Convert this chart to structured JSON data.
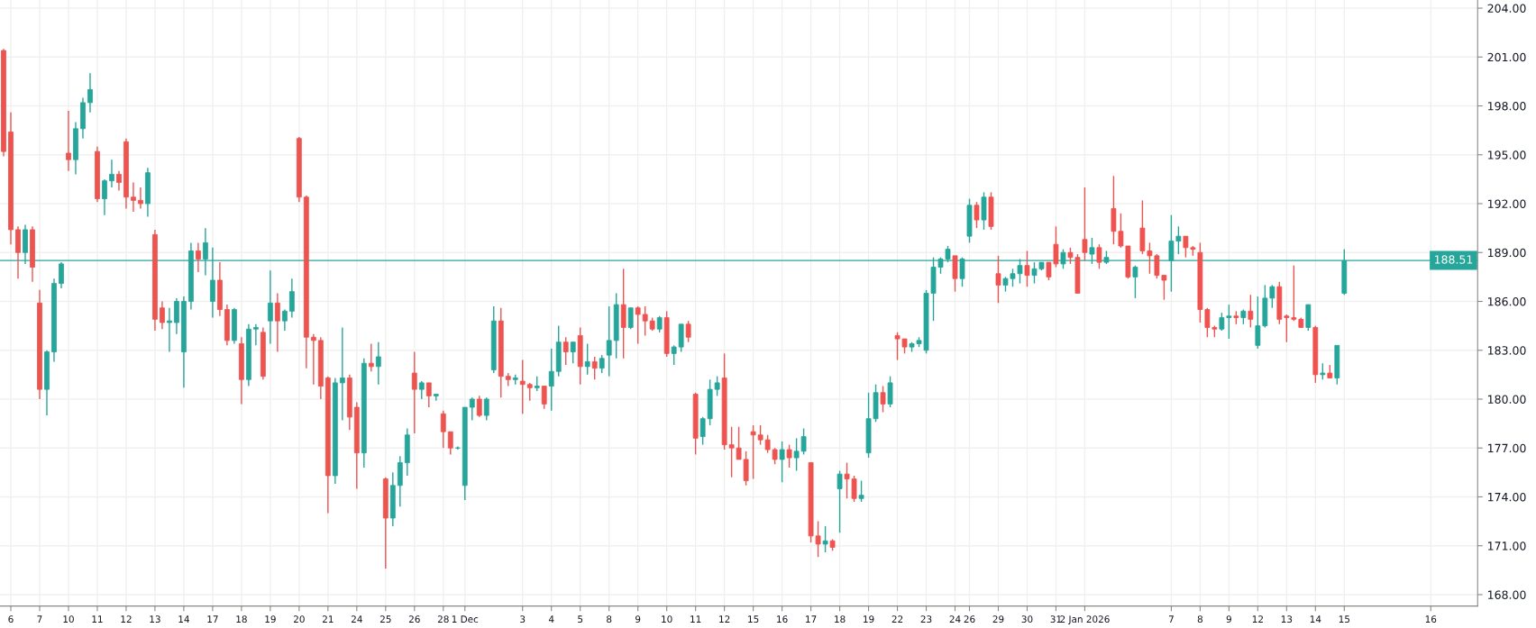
{
  "chart_data": {
    "type": "candlestick",
    "categories": [
      null,
      "6",
      null,
      null,
      null,
      "7",
      null,
      null,
      null,
      "10",
      null,
      null,
      null,
      "11",
      null,
      null,
      null,
      "12",
      null,
      null,
      null,
      "13",
      null,
      null,
      null,
      "14",
      null,
      null,
      null,
      "17",
      null,
      null,
      null,
      "18",
      null,
      null,
      null,
      "19",
      null,
      null,
      null,
      "20",
      null,
      null,
      null,
      "21",
      null,
      null,
      null,
      "24",
      null,
      null,
      null,
      "25",
      null,
      null,
      null,
      "26",
      null,
      null,
      null,
      "28",
      null,
      null,
      "1 Dec",
      null,
      null,
      null,
      null,
      null,
      null,
      null,
      "3",
      null,
      null,
      null,
      "4",
      null,
      null,
      null,
      "5",
      null,
      null,
      null,
      "8",
      null,
      null,
      null,
      "9",
      null,
      null,
      null,
      "10",
      null,
      null,
      null,
      "11",
      null,
      null,
      null,
      "12",
      null,
      null,
      null,
      "15",
      null,
      null,
      null,
      "16",
      null,
      null,
      null,
      "17",
      null,
      null,
      null,
      "18",
      null,
      null,
      null,
      "19",
      null,
      null,
      null,
      "22",
      null,
      null,
      null,
      "23",
      null,
      null,
      null,
      "24",
      null,
      "26",
      null,
      null,
      null,
      "29",
      null,
      null,
      null,
      "30",
      null,
      null,
      null,
      "31",
      null,
      null,
      null,
      "2 Jan 2026",
      null,
      null,
      null,
      null,
      null,
      null,
      null,
      null,
      null,
      null,
      null,
      "7",
      null,
      null,
      null,
      "8",
      null,
      null,
      null,
      "9",
      null,
      null,
      null,
      "12",
      null,
      null,
      null,
      "13",
      null,
      null,
      null,
      "14",
      null,
      null,
      null,
      "15",
      null,
      null,
      null,
      null,
      null,
      null,
      null,
      null,
      null,
      null,
      null,
      "16",
      null,
      null,
      null,
      null,
      null,
      null
    ],
    "ohlc": [
      [
        201.4,
        201.5,
        194.9,
        195.2
      ],
      [
        196.4,
        197.6,
        189.5,
        190.4
      ],
      [
        190.4,
        190.6,
        187.4,
        189.0
      ],
      [
        189.0,
        190.7,
        188.3,
        190.4
      ],
      [
        190.4,
        190.6,
        187.2,
        188.1
      ],
      [
        185.9,
        186.7,
        180.0,
        180.6
      ],
      [
        180.6,
        183.0,
        179.0,
        182.9
      ],
      [
        182.9,
        187.4,
        182.3,
        187.1
      ],
      [
        187.1,
        188.4,
        186.8,
        188.3
      ],
      [
        195.1,
        197.7,
        194.0,
        194.7
      ],
      [
        194.7,
        197.0,
        193.8,
        196.6
      ],
      [
        196.6,
        198.5,
        196.0,
        198.2
      ],
      [
        198.2,
        200.0,
        197.6,
        199.0
      ],
      [
        195.2,
        195.5,
        192.1,
        192.3
      ],
      [
        192.3,
        193.5,
        191.3,
        193.4
      ],
      [
        193.4,
        194.7,
        193.0,
        193.8
      ],
      [
        193.8,
        194.0,
        192.8,
        193.3
      ],
      [
        195.8,
        196.0,
        191.7,
        192.4
      ],
      [
        192.4,
        193.3,
        191.5,
        192.2
      ],
      [
        192.2,
        193.0,
        191.7,
        192.0
      ],
      [
        192.0,
        194.2,
        191.2,
        193.9
      ],
      [
        190.1,
        190.4,
        184.2,
        184.9
      ],
      [
        185.6,
        186.0,
        184.3,
        184.7
      ],
      [
        184.7,
        185.6,
        182.9,
        184.8
      ],
      [
        184.7,
        186.2,
        184.0,
        186.0
      ],
      [
        182.9,
        186.3,
        180.7,
        186.0
      ],
      [
        186.0,
        189.6,
        185.5,
        189.1
      ],
      [
        189.1,
        189.6,
        187.8,
        188.6
      ],
      [
        188.6,
        190.5,
        187.6,
        189.6
      ],
      [
        186.0,
        189.3,
        185.0,
        187.3
      ],
      [
        187.3,
        188.4,
        185.1,
        185.5
      ],
      [
        185.5,
        185.8,
        183.3,
        183.6
      ],
      [
        183.6,
        185.6,
        183.4,
        185.5
      ],
      [
        183.4,
        183.8,
        179.7,
        181.2
      ],
      [
        181.2,
        184.6,
        180.8,
        184.3
      ],
      [
        184.3,
        184.6,
        183.3,
        184.4
      ],
      [
        184.1,
        184.4,
        181.2,
        181.4
      ],
      [
        184.8,
        187.9,
        183.4,
        185.9
      ],
      [
        185.9,
        186.5,
        182.9,
        184.8
      ],
      [
        184.8,
        185.5,
        184.2,
        185.4
      ],
      [
        185.4,
        187.4,
        185.0,
        186.6
      ],
      [
        196.0,
        196.1,
        192.1,
        192.4
      ],
      [
        192.4,
        192.5,
        181.9,
        183.8
      ],
      [
        183.8,
        184.0,
        180.9,
        183.6
      ],
      [
        183.6,
        183.8,
        180.0,
        180.8
      ],
      [
        181.3,
        181.4,
        173.0,
        175.3
      ],
      [
        175.3,
        181.3,
        174.8,
        181.0
      ],
      [
        181.0,
        184.4,
        178.7,
        181.3
      ],
      [
        181.3,
        181.5,
        178.1,
        178.9
      ],
      [
        179.5,
        179.8,
        174.5,
        176.7
      ],
      [
        176.7,
        182.5,
        175.8,
        182.2
      ],
      [
        182.2,
        183.4,
        181.7,
        182.0
      ],
      [
        182.0,
        183.5,
        180.9,
        182.6
      ],
      [
        175.1,
        175.2,
        169.6,
        172.7
      ],
      [
        172.7,
        175.5,
        172.2,
        174.7
      ],
      [
        174.7,
        176.5,
        173.4,
        176.1
      ],
      [
        176.1,
        178.2,
        175.3,
        177.8
      ],
      [
        181.6,
        182.9,
        177.9,
        180.6
      ],
      [
        180.6,
        181.1,
        180.0,
        181.0
      ],
      [
        181.0,
        181.0,
        179.5,
        180.2
      ],
      [
        180.2,
        180.3,
        179.9,
        180.3
      ],
      [
        179.1,
        179.3,
        177.0,
        178.0
      ],
      [
        178.0,
        178.0,
        176.6,
        177.0
      ],
      [
        177.0,
        177.1,
        176.9,
        177.0
      ],
      [
        174.7,
        179.5,
        173.8,
        179.5
      ],
      [
        179.5,
        180.1,
        178.7,
        180.0
      ],
      [
        180.0,
        180.2,
        178.9,
        179.0
      ],
      [
        179.0,
        180.1,
        178.7,
        180.0
      ],
      [
        181.8,
        185.7,
        181.6,
        184.8
      ],
      [
        184.8,
        185.6,
        180.1,
        181.4
      ],
      [
        181.4,
        181.6,
        180.8,
        181.2
      ],
      [
        181.2,
        181.5,
        180.9,
        181.3
      ],
      [
        181.1,
        182.4,
        179.1,
        180.9
      ],
      [
        180.9,
        181.0,
        179.9,
        180.7
      ],
      [
        180.7,
        181.4,
        180.5,
        180.8
      ],
      [
        180.8,
        180.8,
        179.4,
        179.7
      ],
      [
        180.8,
        183.1,
        179.3,
        181.7
      ],
      [
        181.7,
        184.5,
        181.4,
        183.5
      ],
      [
        183.5,
        183.8,
        182.1,
        182.9
      ],
      [
        182.9,
        183.5,
        182.2,
        183.5
      ],
      [
        183.9,
        184.4,
        180.9,
        182.0
      ],
      [
        182.0,
        183.4,
        181.5,
        182.3
      ],
      [
        182.3,
        182.6,
        181.2,
        181.9
      ],
      [
        181.9,
        182.7,
        181.6,
        182.5
      ],
      [
        182.7,
        185.7,
        181.4,
        183.6
      ],
      [
        183.6,
        186.5,
        182.5,
        185.8
      ],
      [
        185.8,
        188.0,
        182.5,
        184.4
      ],
      [
        184.4,
        185.6,
        184.3,
        185.6
      ],
      [
        185.6,
        185.7,
        183.4,
        185.2
      ],
      [
        185.2,
        185.7,
        183.9,
        184.8
      ],
      [
        184.8,
        185.0,
        184.2,
        184.3
      ],
      [
        184.3,
        185.1,
        184.1,
        185.0
      ],
      [
        185.0,
        185.4,
        182.6,
        182.8
      ],
      [
        182.8,
        183.3,
        182.1,
        183.2
      ],
      [
        183.2,
        184.6,
        182.9,
        184.6
      ],
      [
        184.6,
        184.8,
        183.5,
        183.8
      ],
      [
        180.3,
        180.4,
        176.6,
        177.6
      ],
      [
        177.7,
        178.9,
        177.2,
        178.8
      ],
      [
        178.8,
        181.2,
        178.4,
        180.6
      ],
      [
        180.6,
        181.4,
        180.2,
        181.0
      ],
      [
        181.3,
        182.8,
        176.9,
        177.2
      ],
      [
        177.2,
        178.3,
        175.2,
        177.0
      ],
      [
        177.0,
        178.3,
        176.3,
        176.3
      ],
      [
        176.3,
        176.8,
        174.7,
        175.0
      ],
      [
        178.0,
        178.4,
        175.1,
        177.8
      ],
      [
        177.8,
        178.4,
        177.2,
        177.5
      ],
      [
        177.5,
        177.8,
        176.7,
        176.9
      ],
      [
        176.9,
        177.0,
        176.0,
        176.3
      ],
      [
        176.3,
        177.4,
        174.9,
        176.9
      ],
      [
        176.9,
        177.2,
        175.8,
        176.4
      ],
      [
        176.4,
        177.6,
        175.6,
        176.8
      ],
      [
        176.8,
        178.2,
        176.6,
        177.7
      ],
      [
        176.1,
        176.1,
        171.2,
        171.6
      ],
      [
        171.6,
        172.5,
        170.3,
        171.1
      ],
      [
        171.1,
        172.2,
        170.6,
        171.3
      ],
      [
        171.3,
        171.4,
        170.7,
        170.9
      ],
      [
        174.5,
        175.6,
        171.8,
        175.4
      ],
      [
        175.4,
        176.1,
        173.9,
        175.1
      ],
      [
        175.1,
        175.3,
        173.7,
        173.9
      ],
      [
        173.9,
        175.0,
        173.7,
        174.1
      ],
      [
        176.7,
        180.4,
        176.4,
        178.8
      ],
      [
        178.8,
        180.9,
        178.6,
        180.4
      ],
      [
        180.4,
        180.8,
        179.2,
        179.7
      ],
      [
        179.7,
        181.4,
        179.5,
        181.0
      ],
      [
        183.9,
        184.1,
        182.4,
        183.7
      ],
      [
        183.7,
        183.7,
        182.8,
        183.2
      ],
      [
        183.2,
        183.5,
        182.9,
        183.4
      ],
      [
        183.4,
        183.8,
        183.2,
        183.6
      ],
      [
        183.0,
        186.7,
        182.8,
        186.5
      ],
      [
        186.5,
        188.7,
        184.8,
        188.1
      ],
      [
        188.1,
        188.7,
        187.7,
        188.6
      ],
      [
        188.6,
        189.4,
        188.4,
        189.2
      ],
      [
        188.8,
        188.8,
        186.6,
        187.4
      ],
      [
        187.4,
        188.7,
        186.9,
        188.6
      ],
      [
        190.0,
        192.3,
        189.6,
        191.9
      ],
      [
        191.9,
        192.1,
        190.5,
        191.0
      ],
      [
        191.0,
        192.7,
        190.4,
        192.4
      ],
      [
        192.4,
        192.7,
        190.4,
        190.6
      ],
      [
        187.7,
        188.8,
        185.9,
        187.0
      ],
      [
        187.0,
        187.5,
        186.6,
        187.4
      ],
      [
        187.4,
        188.0,
        186.9,
        187.7
      ],
      [
        187.7,
        188.6,
        187.1,
        188.2
      ],
      [
        188.2,
        189.1,
        186.9,
        187.6
      ],
      [
        187.6,
        188.4,
        187.1,
        188.0
      ],
      [
        188.0,
        188.4,
        187.9,
        188.4
      ],
      [
        188.4,
        188.4,
        187.3,
        187.5
      ],
      [
        189.5,
        190.6,
        188.1,
        188.3
      ],
      [
        188.3,
        189.2,
        188.0,
        189.0
      ],
      [
        189.0,
        189.3,
        188.3,
        188.7
      ],
      [
        188.7,
        188.9,
        186.5,
        186.5
      ],
      [
        189.8,
        193.0,
        188.5,
        189.0
      ],
      [
        188.9,
        189.9,
        188.3,
        189.3
      ],
      [
        189.3,
        189.5,
        188.0,
        188.4
      ],
      [
        188.4,
        189.1,
        188.3,
        188.7
      ],
      [
        191.7,
        193.7,
        189.5,
        190.3
      ],
      [
        190.3,
        191.4,
        189.3,
        189.4
      ],
      [
        189.4,
        189.4,
        187.4,
        187.5
      ],
      [
        187.5,
        188.2,
        186.2,
        188.1
      ],
      [
        190.5,
        192.2,
        188.9,
        189.1
      ],
      [
        189.1,
        189.6,
        187.7,
        188.8
      ],
      [
        188.8,
        188.9,
        187.4,
        187.6
      ],
      [
        187.6,
        187.6,
        186.1,
        187.3
      ],
      [
        188.5,
        191.3,
        186.6,
        189.7
      ],
      [
        189.7,
        190.6,
        188.9,
        190.0
      ],
      [
        190.0,
        190.0,
        188.7,
        189.3
      ],
      [
        189.3,
        189.4,
        188.8,
        189.2
      ],
      [
        189.0,
        189.6,
        184.7,
        185.5
      ],
      [
        185.5,
        185.6,
        183.8,
        184.4
      ],
      [
        184.4,
        184.5,
        183.8,
        184.3
      ],
      [
        184.3,
        185.3,
        184.2,
        185.0
      ],
      [
        185.0,
        185.8,
        183.7,
        185.1
      ],
      [
        185.1,
        185.4,
        184.6,
        185.0
      ],
      [
        185.0,
        185.5,
        184.6,
        185.4
      ],
      [
        185.4,
        186.4,
        184.4,
        184.9
      ],
      [
        183.3,
        186.3,
        183.1,
        184.5
      ],
      [
        184.5,
        187.0,
        184.4,
        186.2
      ],
      [
        186.2,
        187.0,
        185.6,
        186.9
      ],
      [
        186.9,
        187.2,
        184.6,
        184.9
      ],
      [
        185.1,
        185.2,
        183.5,
        185.0
      ],
      [
        185.0,
        188.2,
        184.8,
        184.9
      ],
      [
        184.9,
        185.0,
        184.4,
        184.4
      ],
      [
        184.4,
        185.8,
        184.2,
        185.8
      ],
      [
        184.4,
        184.5,
        181.0,
        181.5
      ],
      [
        181.5,
        182.2,
        181.2,
        181.6
      ],
      [
        181.6,
        182.1,
        181.3,
        181.3
      ],
      [
        181.3,
        183.3,
        180.9,
        183.3
      ],
      [
        186.5,
        189.2,
        186.4,
        188.5
      ],
      null,
      null,
      null,
      null,
      null,
      null,
      null,
      null,
      null,
      null,
      null,
      null,
      null,
      null,
      null,
      null,
      null,
      null
    ],
    "colors": [
      "#ef5350",
      "#ef5350",
      "#ef5350",
      "#26a69a",
      "#ef5350",
      "#ef5350",
      "#26a69a",
      "#26a69a",
      "#26a69a",
      "#ef5350",
      "#26a69a",
      "#26a69a",
      "#26a69a",
      "#ef5350",
      "#26a69a",
      "#26a69a",
      "#ef5350",
      "#ef5350",
      "#ef5350",
      "#ef5350",
      "#26a69a",
      "#ef5350",
      "#ef5350",
      "#26a69a",
      "#26a69a",
      "#26a69a",
      "#26a69a",
      "#ef5350",
      "#26a69a",
      "#26a69a",
      "#ef5350",
      "#ef5350",
      "#26a69a",
      "#ef5350",
      "#26a69a",
      "#26a69a",
      "#ef5350",
      "#26a69a",
      "#ef5350",
      "#26a69a",
      "#26a69a",
      "#ef5350",
      "#ef5350",
      "#ef5350",
      "#ef5350",
      "#ef5350",
      "#26a69a",
      "#26a69a",
      "#ef5350",
      "#ef5350",
      "#26a69a",
      "#ef5350",
      "#26a69a",
      "#ef5350",
      "#26a69a",
      "#26a69a",
      "#26a69a",
      "#ef5350",
      "#26a69a",
      "#ef5350",
      "#26a69a",
      "#ef5350",
      "#ef5350",
      "#26a69a",
      "#26a69a",
      "#26a69a",
      "#ef5350",
      "#26a69a",
      "#26a69a",
      "#ef5350",
      "#ef5350",
      "#26a69a",
      "#ef5350",
      "#ef5350",
      "#26a69a",
      "#ef5350",
      "#26a69a",
      "#26a69a",
      "#ef5350",
      "#26a69a",
      "#ef5350",
      "#26a69a",
      "#ef5350",
      "#26a69a",
      "#26a69a",
      "#26a69a",
      "#ef5350",
      "#26a69a",
      "#ef5350",
      "#ef5350",
      "#ef5350",
      "#26a69a",
      "#ef5350",
      "#26a69a",
      "#26a69a",
      "#ef5350",
      "#ef5350",
      "#26a69a",
      "#26a69a",
      "#26a69a",
      "#ef5350",
      "#ef5350",
      "#ef5350",
      "#ef5350",
      "#ef5350",
      "#ef5350",
      "#ef5350",
      "#ef5350",
      "#26a69a",
      "#ef5350",
      "#26a69a",
      "#26a69a",
      "#ef5350",
      "#ef5350",
      "#26a69a",
      "#ef5350",
      "#26a69a",
      "#ef5350",
      "#ef5350",
      "#26a69a",
      "#26a69a",
      "#26a69a",
      "#ef5350",
      "#26a69a",
      "#ef5350",
      "#ef5350",
      "#26a69a",
      "#26a69a",
      "#26a69a",
      "#26a69a",
      "#26a69a",
      "#26a69a",
      "#ef5350",
      "#26a69a",
      "#26a69a",
      "#ef5350",
      "#26a69a",
      "#ef5350",
      "#ef5350",
      "#26a69a",
      "#26a69a",
      "#26a69a",
      "#ef5350",
      "#26a69a",
      "#26a69a",
      "#ef5350",
      "#ef5350",
      "#26a69a",
      "#ef5350",
      "#ef5350",
      "#ef5350",
      "#26a69a",
      "#ef5350",
      "#26a69a",
      "#ef5350",
      "#ef5350",
      "#ef5350",
      "#26a69a",
      "#ef5350",
      "#ef5350",
      "#ef5350",
      "#ef5350",
      "#26a69a",
      "#26a69a",
      "#ef5350",
      "#ef5350",
      "#ef5350",
      "#ef5350",
      "#ef5350",
      "#26a69a",
      "#26a69a",
      "#ef5350",
      "#26a69a",
      "#ef5350",
      "#26a69a",
      "#26a69a",
      "#26a69a",
      "#ef5350",
      "#ef5350",
      "#ef5350",
      "#ef5350",
      "#26a69a",
      "#ef5350",
      "#26a69a",
      "#ef5350",
      "#26a69a",
      "#26a69a",
      null,
      null,
      null,
      null,
      null,
      null,
      null,
      null,
      null,
      null,
      null,
      null,
      null,
      null,
      null,
      null,
      null,
      null
    ],
    "ylim": [
      167.3,
      204.5
    ],
    "yticks": [
      {
        "value": 168,
        "label": "168.00"
      },
      {
        "value": 171,
        "label": "171.00"
      },
      {
        "value": 174,
        "label": "174.00"
      },
      {
        "value": 177,
        "label": "177.00"
      },
      {
        "value": 180,
        "label": "180.00"
      },
      {
        "value": 183,
        "label": "183.00"
      },
      {
        "value": 186,
        "label": "186.00"
      },
      {
        "value": 189,
        "label": "189.00"
      },
      {
        "value": 192,
        "label": "192.00"
      },
      {
        "value": 195,
        "label": "195.00"
      },
      {
        "value": 198,
        "label": "198.00"
      },
      {
        "value": 201,
        "label": "201.00"
      },
      {
        "value": 204,
        "label": "204.00"
      }
    ],
    "ref_lines": [
      {
        "axis": "y",
        "value": 188.51,
        "label": "188.51",
        "color": "#26a69a"
      }
    ],
    "grid": true
  }
}
